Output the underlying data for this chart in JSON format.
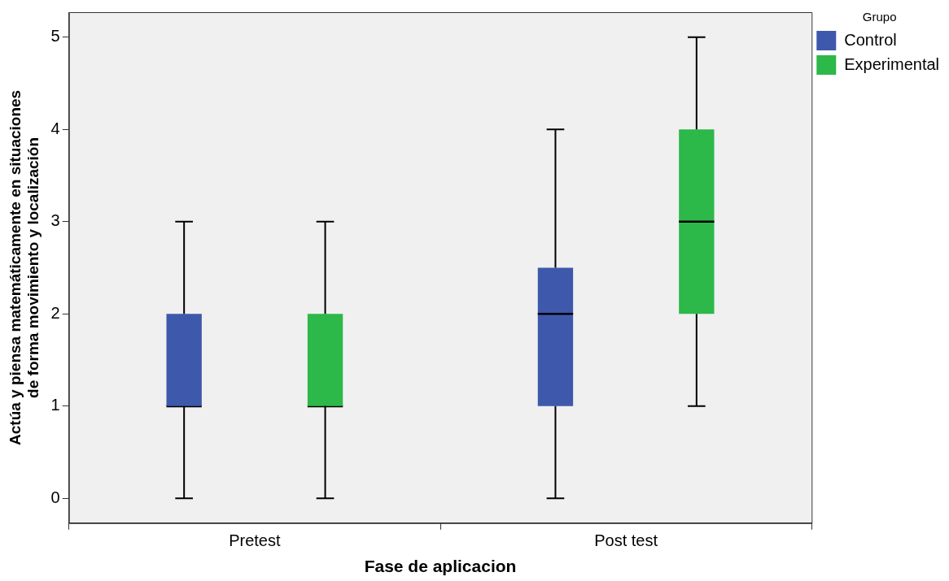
{
  "chart_data": {
    "type": "box",
    "xlabel": "Fase de aplicacion",
    "ylabel": "Actúa y piensa matemáticamente en situaciones de forma movimiento y localización",
    "legend_title": "Grupo",
    "legend": "top right",
    "grid": false,
    "categories": [
      "Pretest",
      "Post test"
    ],
    "ylim": [
      -0.27,
      5.27
    ],
    "yticks": [
      0,
      1,
      2,
      3,
      4,
      5
    ],
    "series": [
      {
        "name": "Control",
        "color": "#3e58ac",
        "boxes": [
          {
            "low": 0,
            "q1": 1,
            "median": 1,
            "q3": 2,
            "high": 3
          },
          {
            "low": 0,
            "q1": 1,
            "median": 2,
            "q3": 2.5,
            "high": 4
          }
        ]
      },
      {
        "name": "Experimental",
        "color": "#2db84a",
        "boxes": [
          {
            "low": 0,
            "q1": 1,
            "median": 1,
            "q3": 2,
            "high": 3
          },
          {
            "low": 1,
            "q1": 2,
            "median": 3,
            "q3": 4,
            "high": 5
          }
        ]
      }
    ]
  }
}
